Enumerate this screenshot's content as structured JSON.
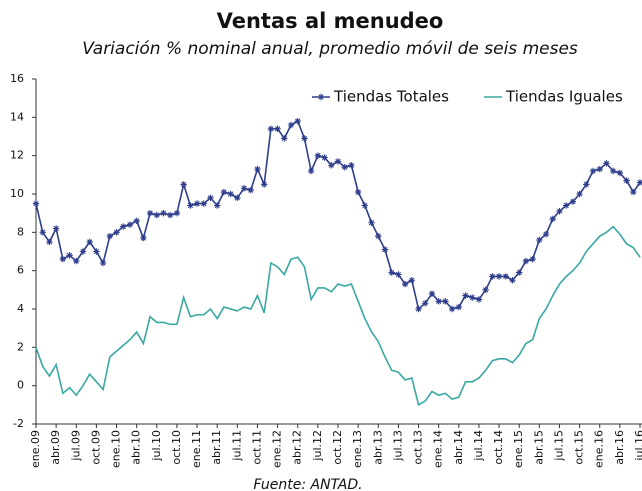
{
  "chart_data": {
    "type": "line",
    "title": "Ventas al menudeo",
    "subtitle": "Variación % nominal anual, promedio móvil de seis meses",
    "source": "Fuente: ANTAD.",
    "categories": [
      "ene.09",
      null,
      null,
      "abr.09",
      null,
      null,
      "jul.09",
      null,
      null,
      "oct.09",
      null,
      null,
      "ene.10",
      null,
      null,
      "abr.10",
      null,
      null,
      "jul.10",
      null,
      null,
      "oct.10",
      null,
      null,
      "ene.11",
      null,
      null,
      "abr.11",
      null,
      null,
      "jul.11",
      null,
      null,
      "oct.11",
      null,
      null,
      "ene.12",
      null,
      null,
      "abr.12",
      null,
      null,
      "jul.12",
      null,
      null,
      "oct.12",
      null,
      null,
      "ene.13",
      null,
      null,
      "abr.13",
      null,
      null,
      "jul.13",
      null,
      null,
      "oct.13",
      null,
      null,
      "ene.14",
      null,
      null,
      "abr.14",
      null,
      null,
      "jul.14",
      null,
      null,
      "oct.14",
      null,
      null,
      "ene.15",
      null,
      null,
      "abr.15",
      null,
      null,
      "jul.15",
      null,
      null,
      "oct.15",
      null,
      null,
      "ene.16",
      null,
      null,
      "abr.16",
      null,
      null,
      "jul.16"
    ],
    "series": [
      {
        "name": "Tiendas Totales",
        "color": "#2e3d8c",
        "marker": "star",
        "values": [
          9.5,
          8.0,
          7.5,
          8.2,
          6.6,
          6.8,
          6.5,
          7.0,
          7.5,
          7.0,
          6.4,
          7.8,
          8.0,
          8.3,
          8.4,
          8.6,
          7.7,
          9.0,
          8.9,
          9.0,
          8.9,
          9.0,
          10.5,
          9.4,
          9.5,
          9.5,
          9.8,
          9.4,
          10.1,
          10.0,
          9.8,
          10.3,
          10.2,
          11.3,
          10.5,
          13.4,
          13.4,
          12.9,
          13.6,
          13.8,
          12.9,
          11.2,
          12.0,
          11.9,
          11.5,
          11.7,
          11.4,
          11.5,
          10.1,
          9.4,
          8.5,
          7.8,
          7.1,
          5.9,
          5.8,
          5.3,
          5.5,
          4.0,
          4.3,
          4.8,
          4.4,
          4.4,
          4.0,
          4.1,
          4.7,
          4.6,
          4.5,
          5.0,
          5.7,
          5.7,
          5.7,
          5.5,
          5.9,
          6.5,
          6.6,
          7.6,
          7.9,
          8.7,
          9.1,
          9.4,
          9.6,
          10.0,
          10.5,
          11.2,
          11.3,
          11.6,
          11.2,
          11.1,
          10.7,
          10.1,
          10.6
        ]
      },
      {
        "name": "Tiendas Iguales",
        "color": "#3aa8a2",
        "values": [
          2.0,
          1.0,
          0.5,
          1.1,
          -0.4,
          -0.1,
          -0.5,
          0.0,
          0.6,
          0.2,
          -0.2,
          1.5,
          1.8,
          2.1,
          2.4,
          2.8,
          2.2,
          3.6,
          3.3,
          3.3,
          3.2,
          3.2,
          4.6,
          3.6,
          3.7,
          3.7,
          4.0,
          3.5,
          4.1,
          4.0,
          3.9,
          4.1,
          4.0,
          4.7,
          3.8,
          6.4,
          6.2,
          5.8,
          6.6,
          6.7,
          6.2,
          4.5,
          5.1,
          5.1,
          4.9,
          5.3,
          5.2,
          5.3,
          4.4,
          3.5,
          2.8,
          2.3,
          1.5,
          0.8,
          0.7,
          0.3,
          0.4,
          -1.0,
          -0.8,
          -0.3,
          -0.5,
          -0.4,
          -0.7,
          -0.6,
          0.2,
          0.2,
          0.4,
          0.8,
          1.3,
          1.4,
          1.4,
          1.2,
          1.6,
          2.2,
          2.4,
          3.5,
          4.0,
          4.7,
          5.3,
          5.7,
          6.0,
          6.4,
          7.0,
          7.4,
          7.8,
          8.0,
          8.3,
          7.9,
          7.4,
          7.2,
          6.7
        ]
      }
    ],
    "ylim": [
      -2,
      16
    ],
    "yticks": [
      -2,
      0,
      2,
      4,
      6,
      8,
      10,
      12,
      14,
      16
    ],
    "grid": false,
    "legend": "top-right"
  }
}
